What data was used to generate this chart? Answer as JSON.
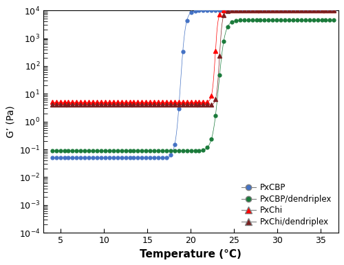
{
  "title": "",
  "xlabel": "Temperature (°C)",
  "ylabel": "G’ (Pa)",
  "xlim": [
    3,
    37
  ],
  "ylim_log": [
    -4,
    4
  ],
  "xticks": [
    5,
    10,
    15,
    20,
    25,
    30,
    35
  ],
  "colors": {
    "PxCBP": "#4472C4",
    "PxCBP_dendriplex": "#1A7A3A",
    "PxChi": "#FF0000",
    "PxChi_dendriplex": "#7B2020"
  },
  "background_color": "#FFFFFF",
  "legend_labels": [
    "PxCBP",
    "PxCBP/dendriplex",
    "PxChi",
    "PxChi/dendriplex"
  ]
}
